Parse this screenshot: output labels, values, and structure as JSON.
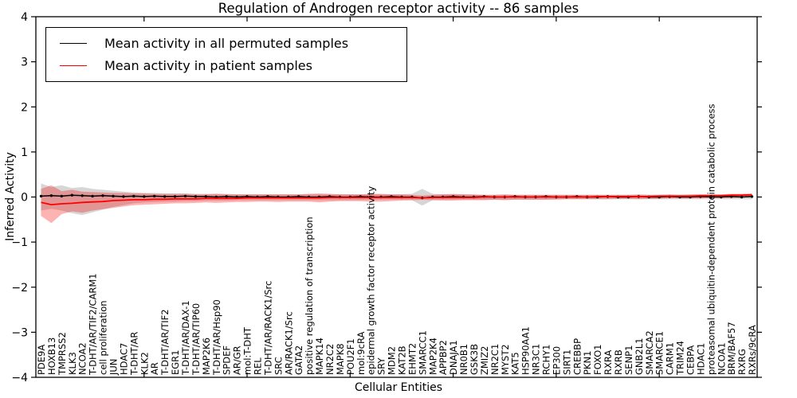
{
  "figure": {
    "title": "Regulation of Androgen receptor activity -- 86 samples",
    "xlabel": "Cellular Entities",
    "ylabel": "Inferred Activity"
  },
  "legend": {
    "entries": [
      {
        "label": "Mean activity in all permuted samples",
        "color": "#000000"
      },
      {
        "label": "Mean activity in patient samples",
        "color": "#ff0000"
      }
    ]
  },
  "chart_data": {
    "type": "line",
    "title": "Regulation of Androgen receptor activity -- 86 samples",
    "xlabel": "Cellular Entities",
    "ylabel": "Inferred Activity",
    "ylim": [
      -4,
      4
    ],
    "yticks": [
      -4,
      -3,
      -2,
      -1,
      0,
      1,
      2,
      3,
      4
    ],
    "xtick_mark_positions": [
      10,
      20,
      30,
      40,
      50,
      60
    ],
    "grid": false,
    "legend_position": "upper-left",
    "categories": [
      "PDE9A",
      "HOXB13",
      "TMPRSS2",
      "KLK3",
      "NCOA2",
      "T-DHT/AR/TIF2/CARM1",
      "cell proliferation",
      "JUN",
      "HDAC7",
      "T-DHT/AR",
      "KLK2",
      "AR",
      "T-DHT/AR/TIF2",
      "EGR1",
      "T-DHT/AR/DAX-1",
      "T-DHT/AR/TIP60",
      "MAP2K6",
      "T-DHT/AR/Hsp90",
      "SPDEF",
      "AR/GR",
      "mol:T-DHT",
      "REL",
      "T-DHT/AR/RACK1/Src",
      "SRC",
      "AR/RACK1/Src",
      "GATA2",
      "positive regulation of transcription",
      "MAPK14",
      "NR2C2",
      "MAPK8",
      "POU2F1",
      "mol:9cRA",
      "epidermal growth factor receptor activity",
      "SRY",
      "MDM2",
      "KAT2B",
      "EHMT2",
      "SMARCC1",
      "MAP2K4",
      "APPBP2",
      "DNAJA1",
      "NR0B1",
      "GSK3B",
      "ZMIZ2",
      "NR2C1",
      "MYST2",
      "KAT5",
      "HSP90AA1",
      "NR3C1",
      "RCHY1",
      "EP300",
      "SIRT1",
      "CREBBP",
      "PKN1",
      "FOXO1",
      "RXRA",
      "RXRB",
      "SENP1",
      "GNB2L1",
      "SMARCA2",
      "SMARCE1",
      "CARM1",
      "TRIM24",
      "CEBPA",
      "HDAC1",
      "proteasomal ubiquitin-dependent protein catabolic process",
      "NCOA1",
      "BRM/BAF57",
      "RXRG",
      "RXRs/9cRA"
    ],
    "series": [
      {
        "name": "Mean activity in all permuted samples",
        "color": "#000000",
        "marker": "dot",
        "values": [
          0.02,
          0.03,
          0.02,
          0.04,
          0.03,
          0.02,
          0.03,
          0.02,
          0.01,
          0.02,
          0.01,
          0.02,
          0.01,
          0.01,
          0.02,
          0.01,
          0.01,
          0.0,
          0.01,
          0.0,
          0.01,
          0.0,
          0.01,
          0.0,
          0.0,
          0.01,
          0.0,
          0.0,
          0.01,
          0.0,
          0.0,
          0.01,
          0.0,
          0.0,
          0.01,
          0.0,
          0.0,
          -0.02,
          0.0,
          0.0,
          0.01,
          0.0,
          0.0,
          0.01,
          0.0,
          0.0,
          0.01,
          0.0,
          0.0,
          0.01,
          0.0,
          0.0,
          0.01,
          0.0,
          0.0,
          0.01,
          0.0,
          0.0,
          0.01,
          0.0,
          0.0,
          0.01,
          0.0,
          0.0,
          0.01,
          0.0,
          0.0,
          0.01,
          0.0,
          0.01
        ]
      },
      {
        "name": "Mean activity in patient samples",
        "color": "#ff0000",
        "marker": "none",
        "values": [
          -0.12,
          -0.17,
          -0.15,
          -0.14,
          -0.12,
          -0.11,
          -0.1,
          -0.08,
          -0.07,
          -0.06,
          -0.06,
          -0.05,
          -0.05,
          -0.04,
          -0.04,
          -0.04,
          -0.03,
          -0.03,
          -0.03,
          -0.03,
          -0.02,
          -0.02,
          -0.02,
          -0.02,
          -0.02,
          -0.02,
          -0.02,
          -0.02,
          -0.01,
          -0.01,
          -0.01,
          -0.01,
          -0.01,
          -0.01,
          -0.01,
          -0.01,
          -0.01,
          -0.02,
          -0.01,
          -0.01,
          -0.01,
          -0.01,
          -0.01,
          0.0,
          0.0,
          0.0,
          0.0,
          0.0,
          0.0,
          0.0,
          0.0,
          0.0,
          0.0,
          0.0,
          0.01,
          0.01,
          0.01,
          0.01,
          0.01,
          0.01,
          0.02,
          0.02,
          0.02,
          0.02,
          0.03,
          0.03,
          0.03,
          0.04,
          0.04,
          0.05
        ]
      }
    ],
    "bands": [
      {
        "name": "permuted-samples-range",
        "color": "#b4b4b4",
        "opacity": 0.55,
        "upper": [
          0.3,
          0.22,
          0.26,
          0.2,
          0.22,
          0.18,
          0.16,
          0.14,
          0.12,
          0.1,
          0.09,
          0.09,
          0.08,
          0.08,
          0.08,
          0.07,
          0.07,
          0.07,
          0.07,
          0.06,
          0.06,
          0.06,
          0.06,
          0.06,
          0.06,
          0.06,
          0.06,
          0.06,
          0.06,
          0.06,
          0.06,
          0.06,
          0.06,
          0.06,
          0.06,
          0.06,
          0.07,
          0.18,
          0.07,
          0.06,
          0.06,
          0.06,
          0.05,
          0.05,
          0.05,
          0.05,
          0.05,
          0.05,
          0.05,
          0.05,
          0.05,
          0.05,
          0.05,
          0.05,
          0.05,
          0.05,
          0.05,
          0.05,
          0.05,
          0.05,
          0.05,
          0.05,
          0.05,
          0.05,
          0.05,
          0.05,
          0.05,
          0.05,
          0.05,
          0.05
        ],
        "lower": [
          -0.3,
          -0.26,
          -0.3,
          -0.36,
          -0.4,
          -0.34,
          -0.28,
          -0.22,
          -0.18,
          -0.14,
          -0.12,
          -0.11,
          -0.1,
          -0.1,
          -0.09,
          -0.09,
          -0.08,
          -0.08,
          -0.08,
          -0.07,
          -0.07,
          -0.07,
          -0.07,
          -0.07,
          -0.07,
          -0.07,
          -0.07,
          -0.07,
          -0.07,
          -0.07,
          -0.07,
          -0.07,
          -0.06,
          -0.06,
          -0.06,
          -0.06,
          -0.07,
          -0.19,
          -0.07,
          -0.06,
          -0.06,
          -0.06,
          -0.06,
          -0.06,
          -0.06,
          -0.06,
          -0.06,
          -0.06,
          -0.06,
          -0.06,
          -0.05,
          -0.05,
          -0.05,
          -0.05,
          -0.05,
          -0.05,
          -0.05,
          -0.05,
          -0.05,
          -0.05,
          -0.05,
          -0.05,
          -0.05,
          -0.05,
          -0.05,
          -0.05,
          -0.05,
          -0.05,
          -0.05,
          -0.05
        ]
      },
      {
        "name": "patient-samples-range",
        "color": "#ff0000",
        "opacity": 0.3,
        "upper": [
          0.18,
          0.26,
          0.13,
          0.16,
          0.12,
          0.11,
          0.1,
          0.09,
          0.09,
          0.08,
          0.08,
          0.07,
          0.07,
          0.07,
          0.07,
          0.06,
          0.06,
          0.07,
          0.06,
          0.06,
          0.06,
          0.06,
          0.06,
          0.06,
          0.06,
          0.06,
          0.07,
          0.08,
          0.07,
          0.06,
          0.06,
          0.06,
          0.07,
          0.07,
          0.06,
          0.06,
          0.05,
          0.03,
          0.05,
          0.06,
          0.07,
          0.06,
          0.06,
          0.05,
          0.05,
          0.06,
          0.05,
          0.05,
          0.05,
          0.05,
          0.05,
          0.05,
          0.05,
          0.05,
          0.05,
          0.05,
          0.05,
          0.05,
          0.06,
          0.05,
          0.05,
          0.06,
          0.05,
          0.06,
          0.06,
          0.06,
          0.06,
          0.07,
          0.07,
          0.08
        ],
        "lower": [
          -0.42,
          -0.58,
          -0.38,
          -0.32,
          -0.35,
          -0.3,
          -0.27,
          -0.24,
          -0.21,
          -0.18,
          -0.17,
          -0.16,
          -0.15,
          -0.14,
          -0.14,
          -0.13,
          -0.12,
          -0.13,
          -0.12,
          -0.11,
          -0.11,
          -0.1,
          -0.1,
          -0.11,
          -0.1,
          -0.1,
          -0.1,
          -0.12,
          -0.1,
          -0.09,
          -0.09,
          -0.09,
          -0.1,
          -0.1,
          -0.09,
          -0.08,
          -0.07,
          -0.06,
          -0.07,
          -0.08,
          -0.08,
          -0.07,
          -0.07,
          -0.07,
          -0.06,
          -0.07,
          -0.06,
          -0.06,
          -0.06,
          -0.06,
          -0.06,
          -0.05,
          -0.05,
          -0.05,
          -0.05,
          -0.05,
          -0.04,
          -0.04,
          -0.05,
          -0.04,
          -0.04,
          -0.03,
          -0.03,
          -0.03,
          -0.03,
          -0.02,
          -0.02,
          -0.02,
          -0.01,
          0.0
        ]
      }
    ]
  }
}
